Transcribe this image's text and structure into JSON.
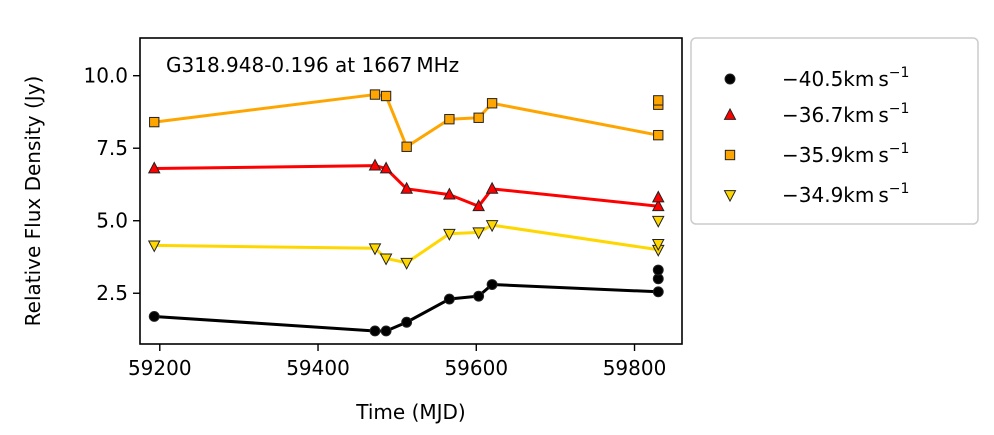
{
  "chart_data": {
    "type": "line",
    "title": "",
    "annotation": "G318.948-0.196 at 1667 MHz",
    "xlabel": "Time (MJD)",
    "ylabel": "Relative Flux Density (Jy)",
    "xlim": [
      59175,
      59860
    ],
    "ylim": [
      0.75,
      11.3
    ],
    "xticks": [
      59200,
      59400,
      59600,
      59800
    ],
    "yticks": [
      2.5,
      5.0,
      7.5,
      10.0
    ],
    "xtick_labels": [
      "59200",
      "59400",
      "59600",
      "59800"
    ],
    "ytick_labels": [
      "2.5",
      "5.0",
      "7.5",
      "10.0"
    ],
    "grid": false,
    "legend_position": "outside-right",
    "series": [
      {
        "name": "−40.5km s",
        "name_sup": "−1",
        "color": "#000000",
        "marker": "circle",
        "x": [
          59193,
          59472,
          59486,
          59512,
          59566,
          59603,
          59620,
          59830
        ],
        "y": [
          1.7,
          1.2,
          1.2,
          1.5,
          2.3,
          2.4,
          2.8,
          2.55
        ],
        "extra_points": [
          [
            59830,
            3.0
          ],
          [
            59830,
            3.3
          ]
        ]
      },
      {
        "name": "−36.7km s",
        "name_sup": "−1",
        "color": "#ff0000",
        "marker": "triangle-up",
        "x": [
          59193,
          59472,
          59486,
          59512,
          59566,
          59603,
          59620,
          59830
        ],
        "y": [
          6.8,
          6.9,
          6.8,
          6.1,
          5.9,
          5.5,
          6.1,
          5.5
        ],
        "extra_points": [
          [
            59830,
            5.8
          ]
        ]
      },
      {
        "name": "−35.9km s",
        "name_sup": "−1",
        "color": "#ffa500",
        "marker": "square",
        "x": [
          59193,
          59472,
          59486,
          59512,
          59566,
          59603,
          59620,
          59830
        ],
        "y": [
          8.4,
          9.35,
          9.3,
          7.55,
          8.5,
          8.55,
          9.05,
          7.95
        ],
        "extra_points": [
          [
            59830,
            9.0
          ],
          [
            59830,
            9.15
          ]
        ]
      },
      {
        "name": "−34.9km s",
        "name_sup": "−1",
        "color": "#ffd700",
        "marker": "triangle-down",
        "x": [
          59193,
          59472,
          59486,
          59512,
          59566,
          59603,
          59620,
          59830
        ],
        "y": [
          4.15,
          4.05,
          3.7,
          3.55,
          4.55,
          4.6,
          4.85,
          4.0
        ],
        "extra_points": [
          [
            59830,
            4.2
          ],
          [
            59830,
            5.0
          ]
        ]
      }
    ]
  }
}
